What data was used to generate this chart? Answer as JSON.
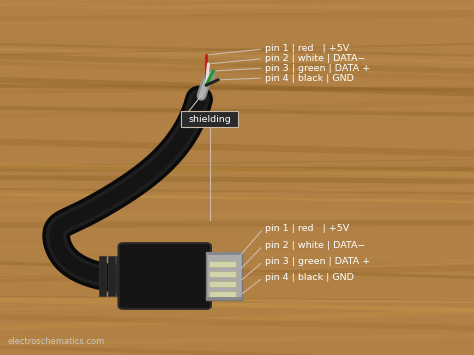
{
  "background_color": "#b08045",
  "watermark": "electroschematics.com",
  "wood_grain_colors": [
    "#a07035",
    "#c09050",
    "#986828",
    "#b88040",
    "#d0a060"
  ],
  "cable_color": "#111111",
  "cable_highlight": "#2a2a2a",
  "wire_colors": [
    "#cc2020",
    "#e0e0e0",
    "#229922",
    "#222222"
  ],
  "shield_color": "#888888",
  "line_color": "#ccbbaa",
  "text_color": "#ffffff",
  "box_bg": "#2a2a2a",
  "box_edge": "#ccbbaa",
  "top_pins": [
    "pin 1 | red   | +5V",
    "pin 2 | white | DATA−",
    "pin 3 | green | DATA +",
    "pin 4 | black | GND"
  ],
  "bottom_pins": [
    "pin 1 | red   | +5V",
    "pin 2 | white | DATA−",
    "pin 3 | green | DATA +",
    "pin 4 | black | GND"
  ],
  "shielding_label": "shielding",
  "font_size": 6.8,
  "connector_color": "#1a1a1a",
  "metal_color": "#aaaaaa",
  "pin_tab_color": "#cccc99"
}
